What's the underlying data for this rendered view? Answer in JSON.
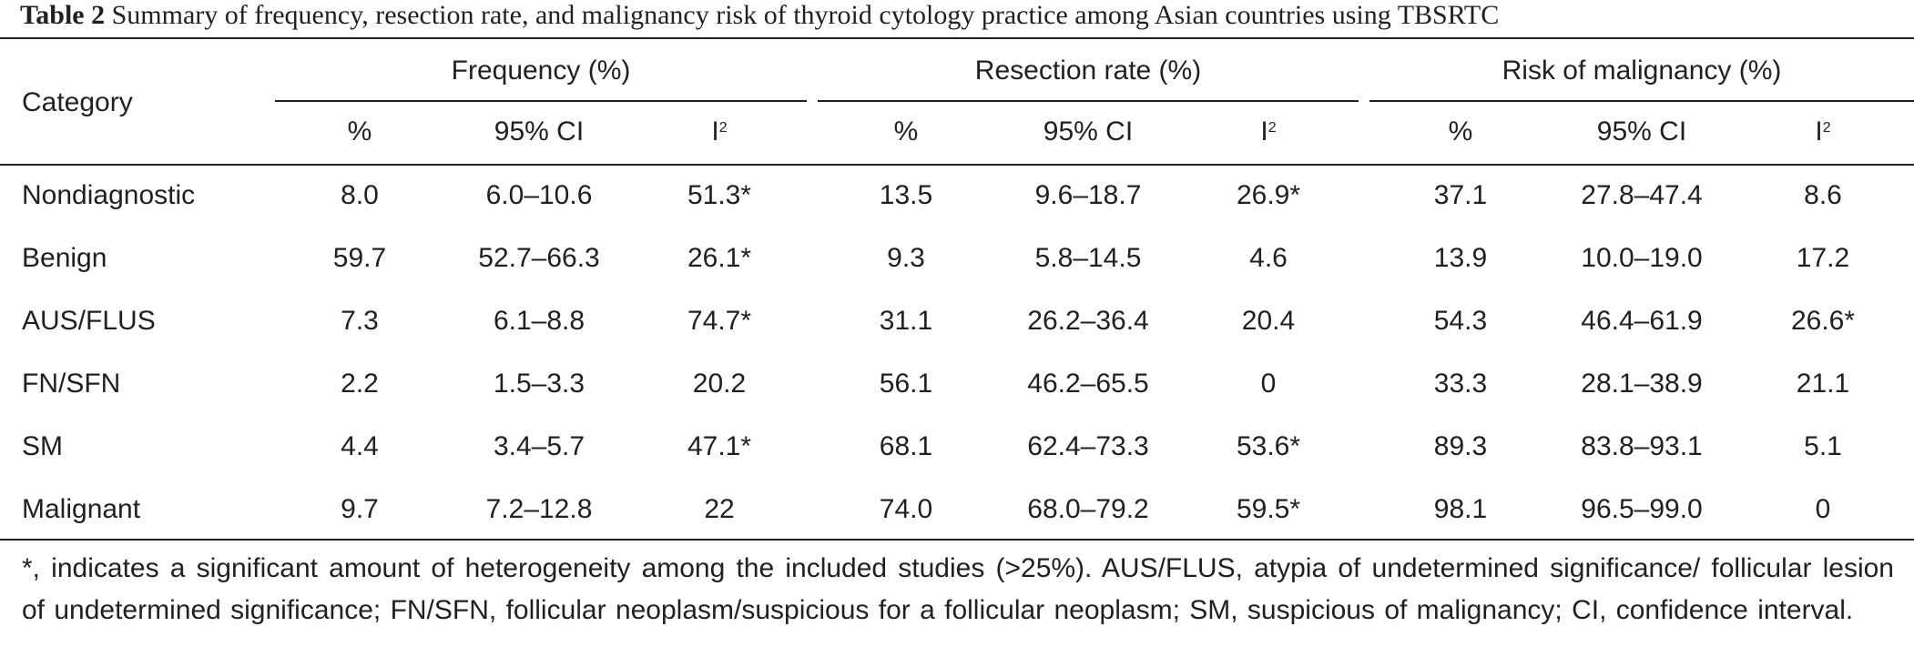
{
  "caption": {
    "label": "Table 2",
    "text": "Summary of frequency, resection rate, and malignancy risk of thyroid cytology practice among Asian countries using TBSRTC"
  },
  "header": {
    "category": "Category",
    "groups": [
      "Frequency (%)",
      "Resection rate (%)",
      "Risk of malignancy (%)"
    ],
    "sub": {
      "pct": "%",
      "ci": "95% CI",
      "i": "I",
      "i_sup": "2"
    }
  },
  "rows": [
    {
      "category": "Nondiagnostic",
      "values": [
        "8.0",
        "6.0–10.6",
        "51.3*",
        "13.5",
        "9.6–18.7",
        "26.9*",
        "37.1",
        "27.8–47.4",
        "8.6"
      ]
    },
    {
      "category": "Benign",
      "values": [
        "59.7",
        "52.7–66.3",
        "26.1*",
        "9.3",
        "5.8–14.5",
        "4.6",
        "13.9",
        "10.0–19.0",
        "17.2"
      ]
    },
    {
      "category": "AUS/FLUS",
      "values": [
        "7.3",
        "6.1–8.8",
        "74.7*",
        "31.1",
        "26.2–36.4",
        "20.4",
        "54.3",
        "46.4–61.9",
        "26.6*"
      ]
    },
    {
      "category": "FN/SFN",
      "values": [
        "2.2",
        "1.5–3.3",
        "20.2",
        "56.1",
        "46.2–65.5",
        "0",
        "33.3",
        "28.1–38.9",
        "21.1"
      ]
    },
    {
      "category": "SM",
      "values": [
        "4.4",
        "3.4–5.7",
        "47.1*",
        "68.1",
        "62.4–73.3",
        "53.6*",
        "89.3",
        "83.8–93.1",
        "5.1"
      ]
    },
    {
      "category": "Malignant",
      "values": [
        "9.7",
        "7.2–12.8",
        "22",
        "74.0",
        "68.0–79.2",
        "59.5*",
        "98.1",
        "96.5–99.0",
        "0"
      ]
    }
  ],
  "footnote": "*, indicates a significant amount of heterogeneity among the included studies (>25%). AUS/FLUS, atypia of undetermined significance/ follicular lesion of undetermined significance; FN/SFN, follicular neoplasm/suspicious for a follicular neoplasm; SM, suspicious of malignancy; CI, confidence interval."
}
